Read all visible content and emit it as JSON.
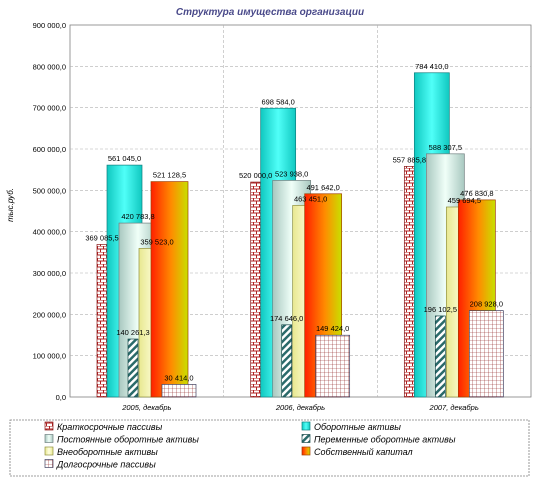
{
  "chart_data": {
    "type": "bar",
    "title": "Структура имущества организации",
    "ylabel": "тыс.руб.",
    "categories": [
      "2005, декабрь",
      "2006, декабрь",
      "2007, декабрь"
    ],
    "ylim": [
      0,
      900000
    ],
    "yticks": [
      "0,0",
      "100 000,0",
      "200 000,0",
      "300 000,0",
      "400 000,0",
      "500 000,0",
      "600 000,0",
      "700 000,0",
      "800 000,0",
      "900 000,0"
    ],
    "grid": true,
    "legend_position": "bottom",
    "series": [
      {
        "name": "Краткосрочные пассивы",
        "values": [
          369085.5,
          520000,
          557885.8
        ],
        "labels": [
          "369 085,5",
          "520 000,0",
          "557 885,8"
        ],
        "color": "#c03030"
      },
      {
        "name": "Оборотные активы",
        "values": [
          561045.0,
          698584.0,
          784410.0
        ],
        "labels": [
          "561 045,0",
          "698 584,0",
          "784 410,0"
        ],
        "color": "#20e8e0"
      },
      {
        "name": "Постоянные оборотные активы",
        "values": [
          420783.8,
          523938.0,
          588307.5
        ],
        "labels": [
          "420 783,8",
          "523 938,0",
          "588 307,5"
        ],
        "color": "#c8e0d8"
      },
      {
        "name": "Переменные оборотные активы",
        "values": [
          140261.3,
          174646.0,
          196102.5
        ],
        "labels": [
          "140 261,3",
          "174 646,0",
          "196 102,5"
        ],
        "color": "#2a6a6a"
      },
      {
        "name": "Внеоборотные активы",
        "values": [
          359523.0,
          463451.0,
          459694.5
        ],
        "labels": [
          "359 523,0",
          "463 451,0",
          "459 694,5"
        ],
        "color": "#ffffb0"
      },
      {
        "name": "Собственный капитал",
        "values": [
          521128.5,
          491642.0,
          476830.8
        ],
        "labels": [
          "521 128,5",
          "491 642,0",
          "476 830,8"
        ],
        "color": "#ff6000"
      },
      {
        "name": "Долгосрочные пассивы",
        "values": [
          30414.0,
          149424.0,
          208928.0
        ],
        "labels": [
          "30 414,0",
          "149 424,0",
          "208 928,0"
        ],
        "color": "#a0a0a0"
      }
    ]
  }
}
